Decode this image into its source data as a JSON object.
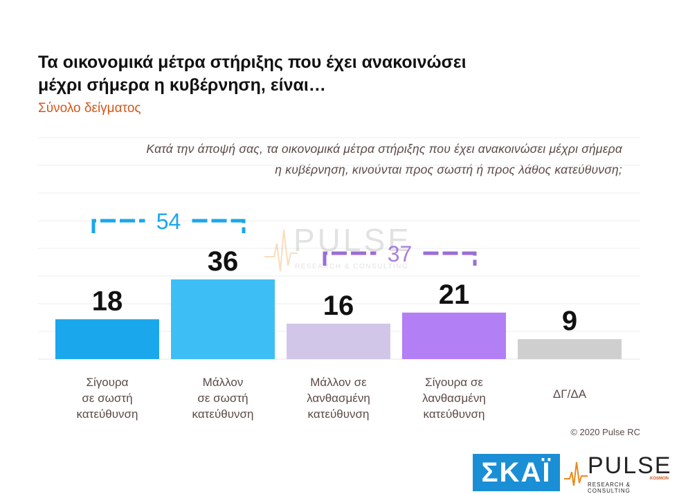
{
  "title_line1": "Τα οικονομικά μέτρα στήριξης που έχει ανακοινώσει",
  "title_line2": "μέχρι σήμερα η κυβέρνηση, είναι…",
  "subtitle": "Σύνολο δείγματος",
  "question_line1": "Κατά την άποψή σας, τα οικονομικά μέτρα στήριξης που έχει ανακοινώσει μέχρι σήμερα",
  "question_line2": "η κυβέρνηση, κινούνται προς σωστή ή προς λάθος κατεύθυνση;",
  "copyright": "© 2020 Pulse RC",
  "watermark": {
    "word": "PULSE",
    "sub": "RESEARCH & CONSULTING"
  },
  "logos": {
    "skai": "ΣΚΑΪ",
    "pulse_word": "PULSE",
    "pulse_sub": "RESEARCH & CONSULTING",
    "kosmon": "KOSMON"
  },
  "chart_data": {
    "type": "bar",
    "categories": [
      [
        "Σίγουρα",
        "σε σωστή",
        "κατεύθυνση"
      ],
      [
        "Μάλλον",
        "σε σωστή",
        "κατεύθυνση"
      ],
      [
        "Μάλλον σε",
        "λανθασμένη",
        "κατεύθυνση"
      ],
      [
        "Σίγουρα σε",
        "λανθασμένη",
        "κατεύθυνση"
      ],
      [
        "ΔΓ/ΔΑ"
      ]
    ],
    "values": [
      18,
      36,
      16,
      21,
      9
    ],
    "colors": [
      "#1aa7ec",
      "#3dbff5",
      "#d2c6e8",
      "#b27ff5",
      "#cfcfcf"
    ],
    "ylim": [
      0,
      100
    ],
    "grid": true,
    "brackets": [
      {
        "label": "54",
        "from": 0,
        "to": 1,
        "color": "#1aa7ec"
      },
      {
        "label": "37",
        "from": 2,
        "to": 3,
        "color": "#9b6cd9"
      }
    ]
  }
}
